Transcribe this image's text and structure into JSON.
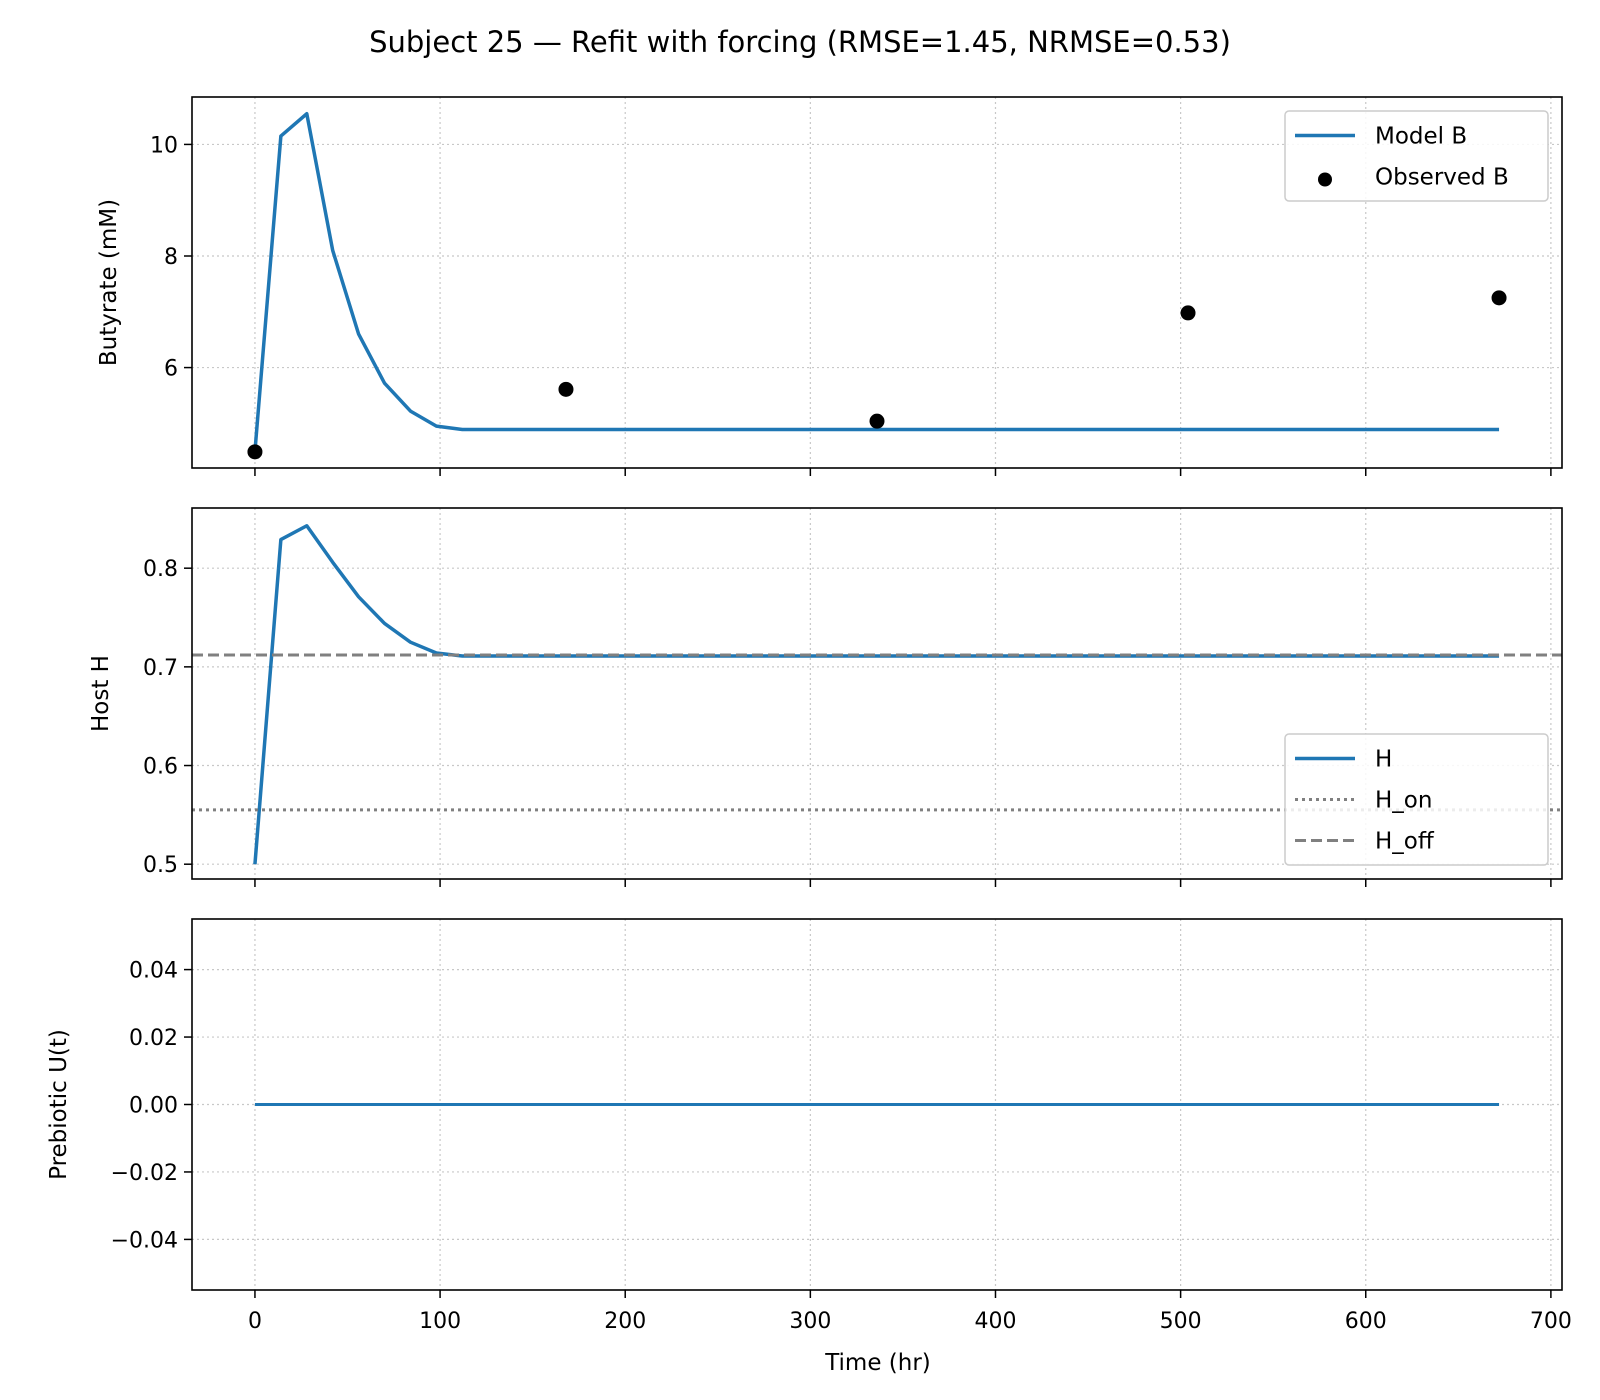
{
  "title": "Subject 25 — Refit with forcing (RMSE=1.45, NRMSE=0.53)",
  "xlabel": "Time (hr)",
  "x_ticks": [
    "0",
    "100",
    "200",
    "300",
    "400",
    "500",
    "600",
    "700"
  ],
  "colors": {
    "model": "#1f77b4",
    "observed": "#000000",
    "threshold": "#808080",
    "grid": "#c8c8c8"
  },
  "chart_data": [
    {
      "type": "line",
      "ylabel": "Butyrate (mM)",
      "xlim": [
        -34,
        706
      ],
      "ylim": [
        4.2,
        10.85
      ],
      "y_ticks": [
        6,
        8,
        10
      ],
      "y_tick_labels": [
        "6",
        "8",
        "10"
      ],
      "grid": true,
      "legend": "top-right",
      "series": [
        {
          "name": "Model B",
          "kind": "line",
          "x": [
            0,
            14,
            28,
            42,
            56,
            70,
            84,
            98,
            112,
            140,
            200,
            300,
            400,
            500,
            600,
            672
          ],
          "y": [
            4.5,
            10.15,
            10.55,
            8.1,
            6.6,
            5.72,
            5.22,
            4.95,
            4.89,
            4.89,
            4.89,
            4.89,
            4.89,
            4.89,
            4.89,
            4.89
          ]
        },
        {
          "name": "Observed B",
          "kind": "scatter",
          "x": [
            0,
            168,
            336,
            504,
            672
          ],
          "y": [
            4.49,
            5.61,
            5.04,
            6.98,
            7.25
          ]
        }
      ]
    },
    {
      "type": "line",
      "ylabel": "Host H",
      "xlim": [
        -34,
        706
      ],
      "ylim": [
        0.485,
        0.861
      ],
      "y_ticks": [
        0.5,
        0.6,
        0.7,
        0.8
      ],
      "y_tick_labels": [
        "0.5",
        "0.6",
        "0.7",
        "0.8"
      ],
      "grid": true,
      "legend": "lower-right",
      "series": [
        {
          "name": "H",
          "kind": "line",
          "x": [
            0,
            14,
            28,
            42,
            56,
            70,
            84,
            98,
            112,
            140,
            200,
            300,
            400,
            500,
            600,
            672
          ],
          "y": [
            0.5,
            0.829,
            0.843,
            0.806,
            0.771,
            0.744,
            0.725,
            0.714,
            0.711,
            0.711,
            0.711,
            0.711,
            0.711,
            0.711,
            0.711,
            0.711
          ]
        },
        {
          "name": "H_on",
          "kind": "hline",
          "style": "dotted",
          "y": 0.555
        },
        {
          "name": "H_off",
          "kind": "hline",
          "style": "dashed",
          "y": 0.712
        }
      ]
    },
    {
      "type": "line",
      "ylabel": "Prebiotic U(t)",
      "xlim": [
        -34,
        706
      ],
      "ylim": [
        -0.055,
        0.055
      ],
      "y_ticks": [
        -0.04,
        -0.02,
        0.0,
        0.02,
        0.04
      ],
      "y_tick_labels": [
        "−0.04",
        "−0.02",
        "0.00",
        "0.02",
        "0.04"
      ],
      "grid": true,
      "legend": "",
      "series": [
        {
          "kind": "line",
          "x": [
            0,
            672
          ],
          "y": [
            0,
            0
          ]
        }
      ]
    }
  ]
}
